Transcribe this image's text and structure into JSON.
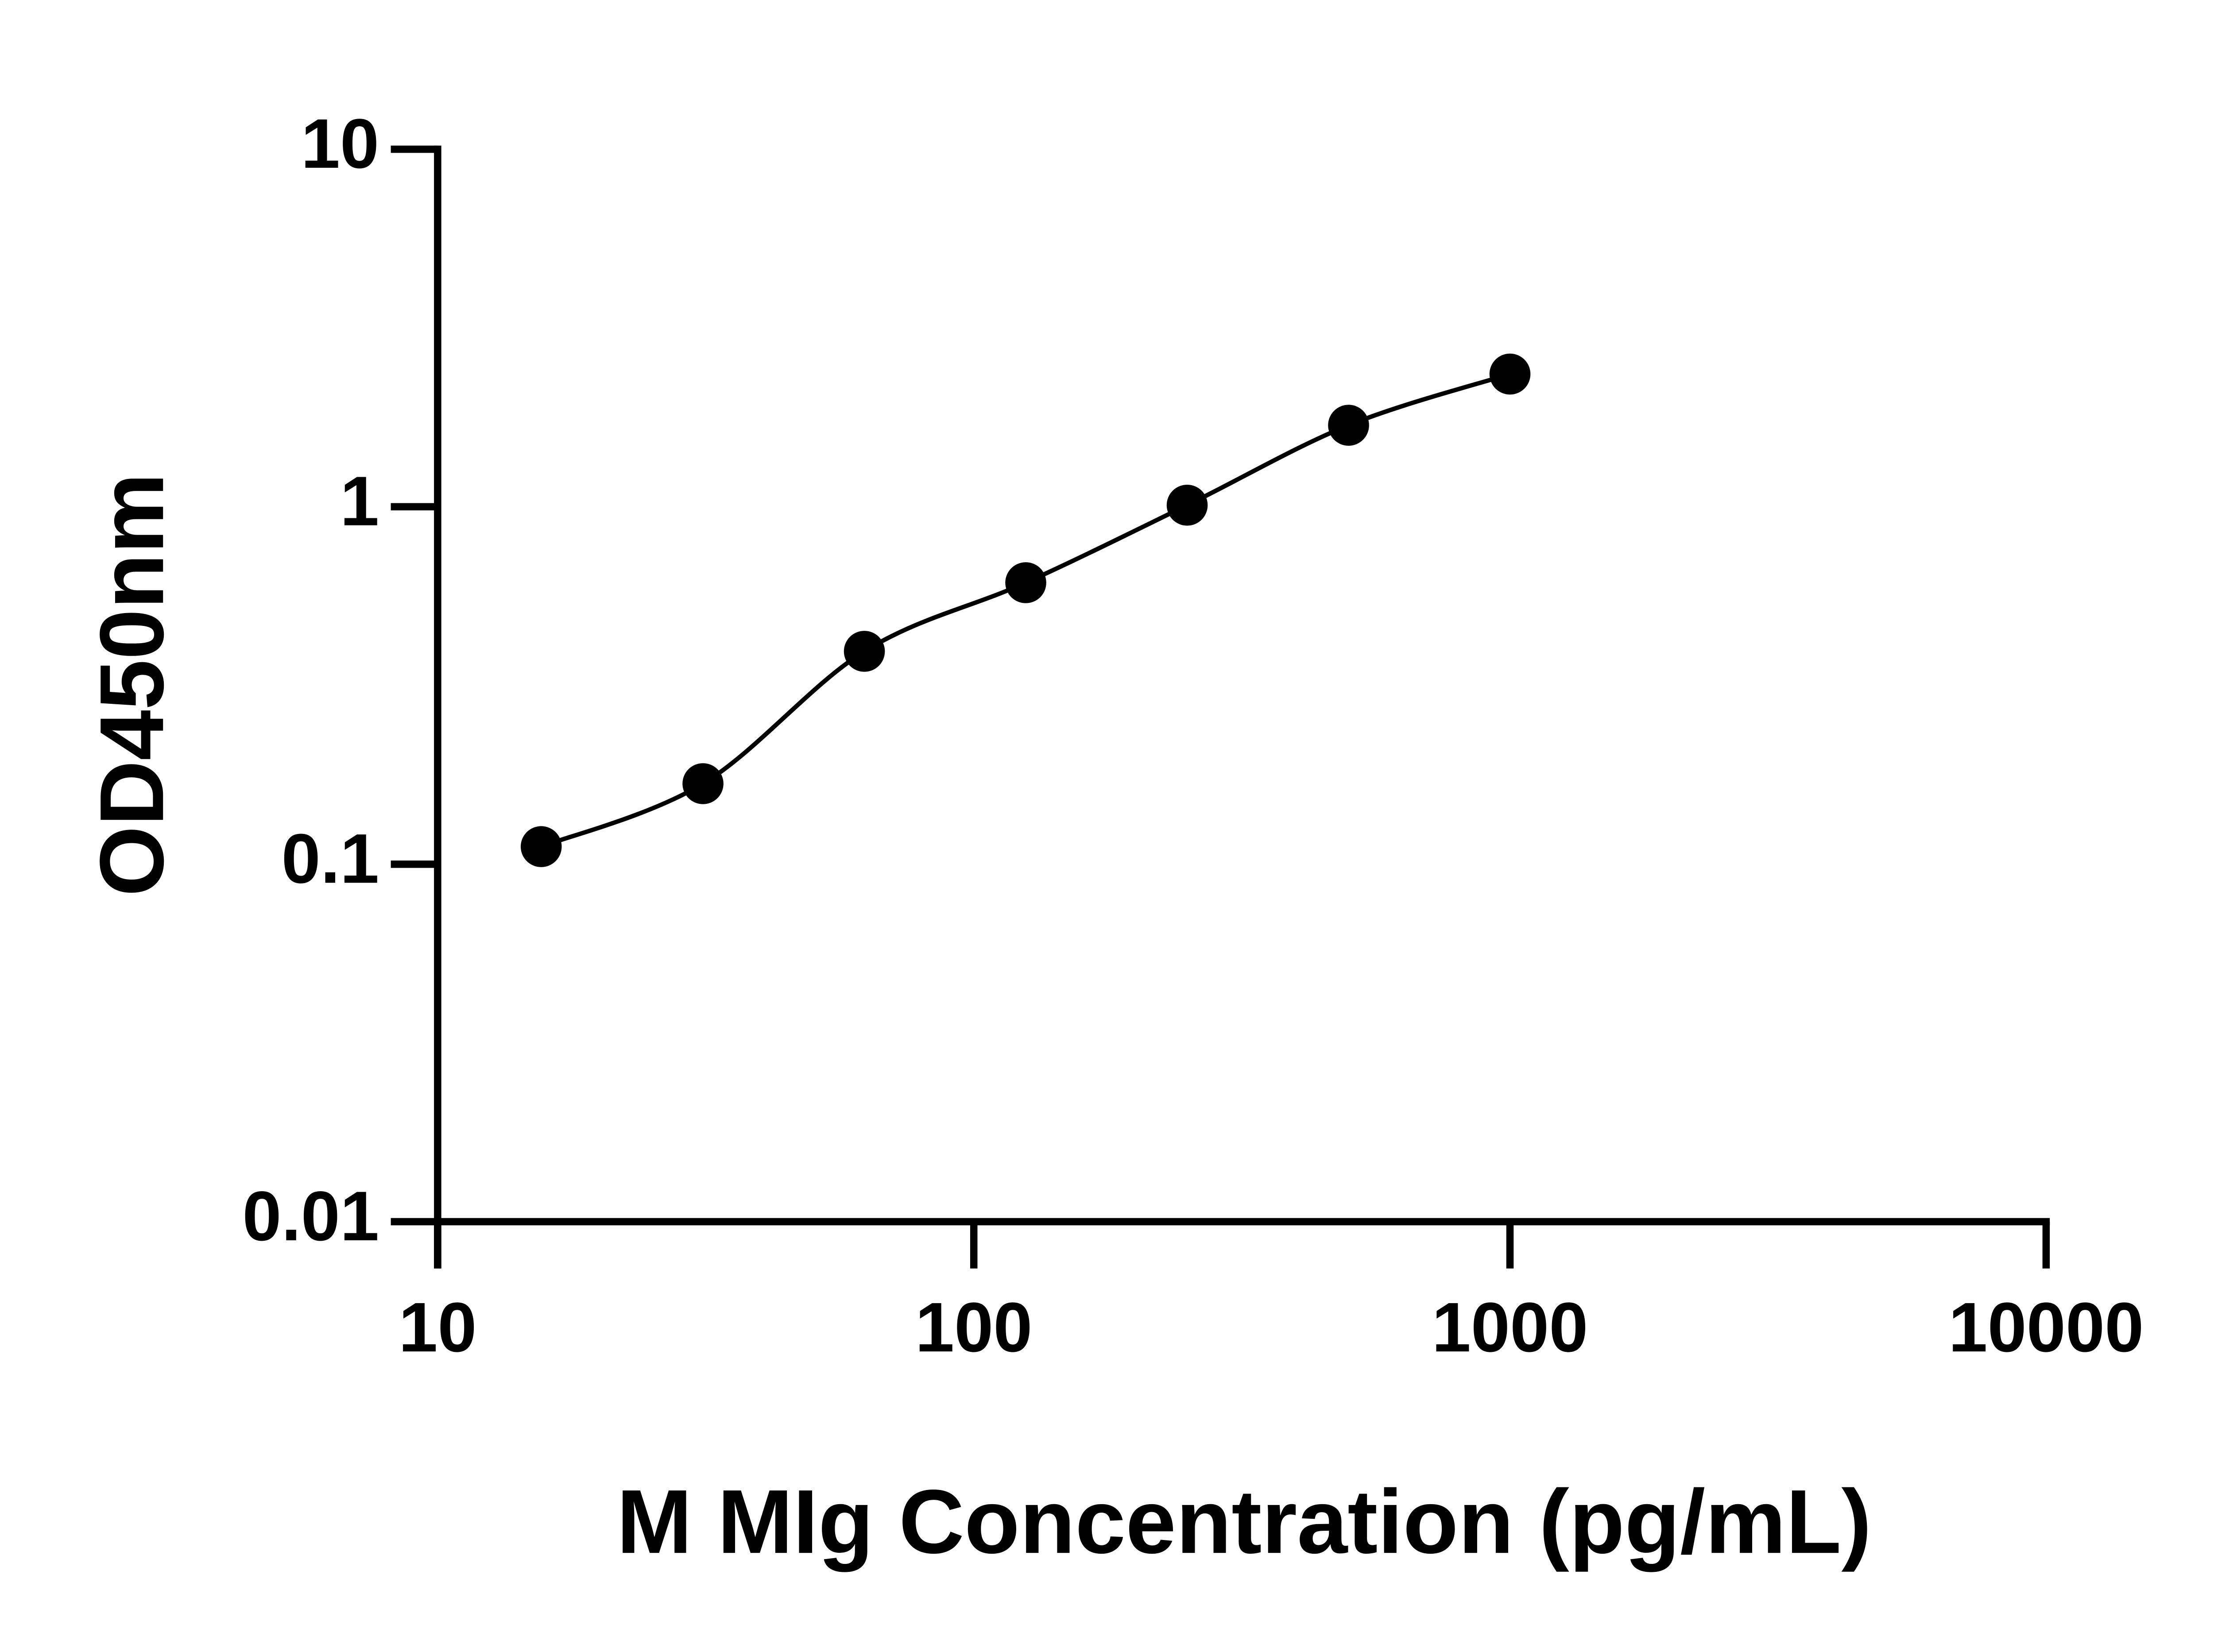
{
  "chart_data": {
    "type": "scatter",
    "x_label": "M MIg Concentration (pg/mL)",
    "y_label": "OD450nm",
    "x_log": true,
    "y_log": true,
    "xlim": [
      10,
      10000
    ],
    "ylim": [
      0.01,
      10
    ],
    "xticks": [
      10,
      100,
      1000,
      10000
    ],
    "yticks": [
      0.01,
      0.1,
      1,
      10
    ],
    "connect": true,
    "color": "#000000",
    "x": [
      15.6,
      31.25,
      62.5,
      125,
      250,
      500,
      1000
    ],
    "values": [
      0.112,
      0.168,
      0.394,
      0.613,
      1.01,
      1.69,
      2.35
    ]
  }
}
